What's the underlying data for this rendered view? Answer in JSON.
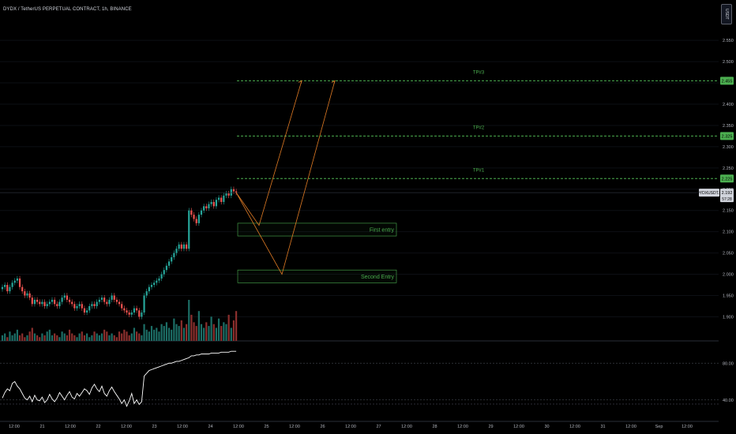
{
  "header": {
    "symbol_line": "DYDX / TetherUS PERPETUAL CONTRACT, 1h, BINANCE",
    "currency_button": "USDT"
  },
  "colors": {
    "background": "#000000",
    "up": "#26a69a",
    "down": "#ef5350",
    "target_line": "#4caf50",
    "arrow": "#e07b24",
    "rsi_line": "#ffffff",
    "grid": "#1c1e24",
    "axis_text": "#b2b5be"
  },
  "chart_data": {
    "type": "candlestick",
    "price_axis": {
      "ylim": [
        1.86,
        2.58
      ],
      "ticks": [
        "2.550",
        "2.500",
        "2.450",
        "2.400",
        "2.350",
        "2.300",
        "2.250",
        "2.200",
        "2.150",
        "2.100",
        "2.050",
        "2.000",
        "1.950",
        "1.900"
      ]
    },
    "rsi_axis": {
      "ylim": [
        20,
        100
      ],
      "ticks": [
        "80.00",
        "40.00"
      ]
    },
    "x_axis": {
      "ticks": [
        "12:00",
        "21",
        "12:00",
        "22",
        "12:00",
        "23",
        "12:00",
        "24",
        "12:00",
        "25",
        "12:00",
        "26",
        "12:00",
        "27",
        "12:00",
        "28",
        "12:00",
        "29",
        "12:00",
        "30",
        "12:00",
        "31",
        "12:00",
        "Sep",
        "12:00"
      ]
    },
    "price_tags": [
      {
        "label": "2.455",
        "value": 2.455,
        "kind": "target"
      },
      {
        "label": "2.325",
        "value": 2.325,
        "kind": "target"
      },
      {
        "label": "2.225",
        "value": 2.225,
        "kind": "target"
      }
    ],
    "current_price": {
      "symbol_label": "DYDXUSDT.P",
      "price": "2.192",
      "countdown": "57:28",
      "value": 2.192
    },
    "targets": [
      {
        "label": "TP#3",
        "price": 2.455
      },
      {
        "label": "TP#2",
        "price": 2.325
      },
      {
        "label": "TP#1",
        "price": 2.225
      }
    ],
    "entry_zones": [
      {
        "label": "First entry",
        "top": 2.12,
        "bottom": 2.09
      },
      {
        "label": "Second Entry",
        "top": 2.01,
        "bottom": 1.98
      }
    ],
    "closes": [
      1.97,
      1.975,
      1.96,
      1.97,
      1.98,
      1.985,
      1.99,
      1.97,
      1.96,
      1.95,
      1.955,
      1.945,
      1.93,
      1.94,
      1.935,
      1.93,
      1.935,
      1.925,
      1.93,
      1.935,
      1.94,
      1.93,
      1.925,
      1.935,
      1.945,
      1.95,
      1.94,
      1.935,
      1.93,
      1.92,
      1.925,
      1.93,
      1.92,
      1.91,
      1.915,
      1.925,
      1.93,
      1.925,
      1.935,
      1.94,
      1.945,
      1.935,
      1.93,
      1.94,
      1.95,
      1.94,
      1.935,
      1.93,
      1.92,
      1.915,
      1.91,
      1.905,
      1.91,
      1.92,
      1.915,
      1.9,
      1.91,
      1.95,
      1.96,
      1.97,
      1.975,
      1.98,
      1.985,
      1.99,
      2.0,
      2.01,
      2.02,
      2.03,
      2.04,
      2.05,
      2.06,
      2.07,
      2.06,
      2.07,
      2.06,
      2.15,
      2.14,
      2.13,
      2.12,
      2.14,
      2.15,
      2.16,
      2.155,
      2.165,
      2.17,
      2.16,
      2.175,
      2.18,
      2.17,
      2.185,
      2.19,
      2.185,
      2.2,
      2.195,
      2.192
    ],
    "volumes": [
      3,
      4,
      2,
      5,
      3,
      4,
      6,
      3,
      4,
      2,
      3,
      5,
      7,
      4,
      3,
      2,
      4,
      3,
      5,
      6,
      3,
      4,
      3,
      2,
      5,
      4,
      3,
      6,
      4,
      3,
      2,
      4,
      5,
      3,
      4,
      2,
      3,
      5,
      4,
      3,
      4,
      6,
      5,
      3,
      4,
      3,
      2,
      5,
      4,
      6,
      5,
      3,
      4,
      7,
      5,
      4,
      3,
      9,
      6,
      5,
      8,
      6,
      7,
      5,
      9,
      8,
      10,
      7,
      6,
      12,
      9,
      8,
      11,
      7,
      9,
      22,
      14,
      10,
      8,
      16,
      9,
      7,
      10,
      8,
      13,
      9,
      7,
      12,
      8,
      10,
      9,
      14,
      7,
      11,
      16
    ],
    "rsi": [
      42,
      48,
      52,
      50,
      58,
      60,
      55,
      52,
      47,
      42,
      40,
      44,
      38,
      45,
      40,
      39,
      43,
      37,
      40,
      46,
      41,
      38,
      42,
      48,
      44,
      40,
      45,
      49,
      43,
      41,
      47,
      44,
      48,
      52,
      50,
      46,
      53,
      57,
      52,
      49,
      55,
      47,
      44,
      50,
      54,
      49,
      45,
      41,
      36,
      40,
      33,
      39,
      47,
      36,
      40,
      35,
      38,
      66,
      69,
      72,
      73,
      74,
      75,
      76,
      77,
      78,
      79,
      80,
      80,
      81,
      82,
      82,
      83,
      84,
      85,
      86,
      88,
      88,
      89,
      89,
      90,
      90,
      90,
      90,
      91,
      91,
      91,
      91,
      92,
      92,
      92,
      92,
      93,
      93,
      93
    ]
  }
}
